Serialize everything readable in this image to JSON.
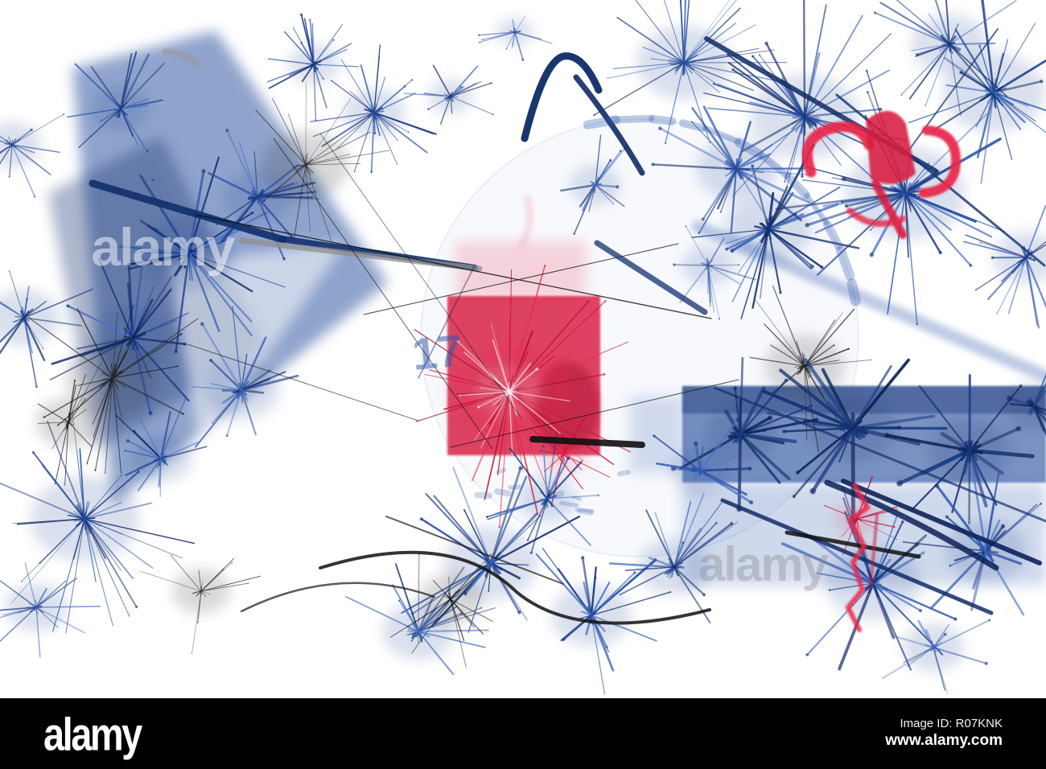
{
  "image": {
    "watermark_text": "alamy",
    "faint_numerals": "17",
    "colors": {
      "blue": "#2b55ab",
      "mid_blue": "#1e3f8e",
      "navy": "#0f2a66",
      "deep_navy": "#0c2257",
      "red": "#e8274a",
      "deep_red": "#c8143a",
      "dark_red": "#a90e2e",
      "black": "#101010",
      "gray": "#8f8f8f",
      "clock_fill": "#f0f4fb",
      "clock_rim": "#ccd9ee",
      "bar_background": "#000000",
      "bar_text": "#ffffff"
    }
  },
  "footer": {
    "logo": "alamy",
    "image_id": "Image ID: R07KNK",
    "url": "www.alamy.com"
  }
}
